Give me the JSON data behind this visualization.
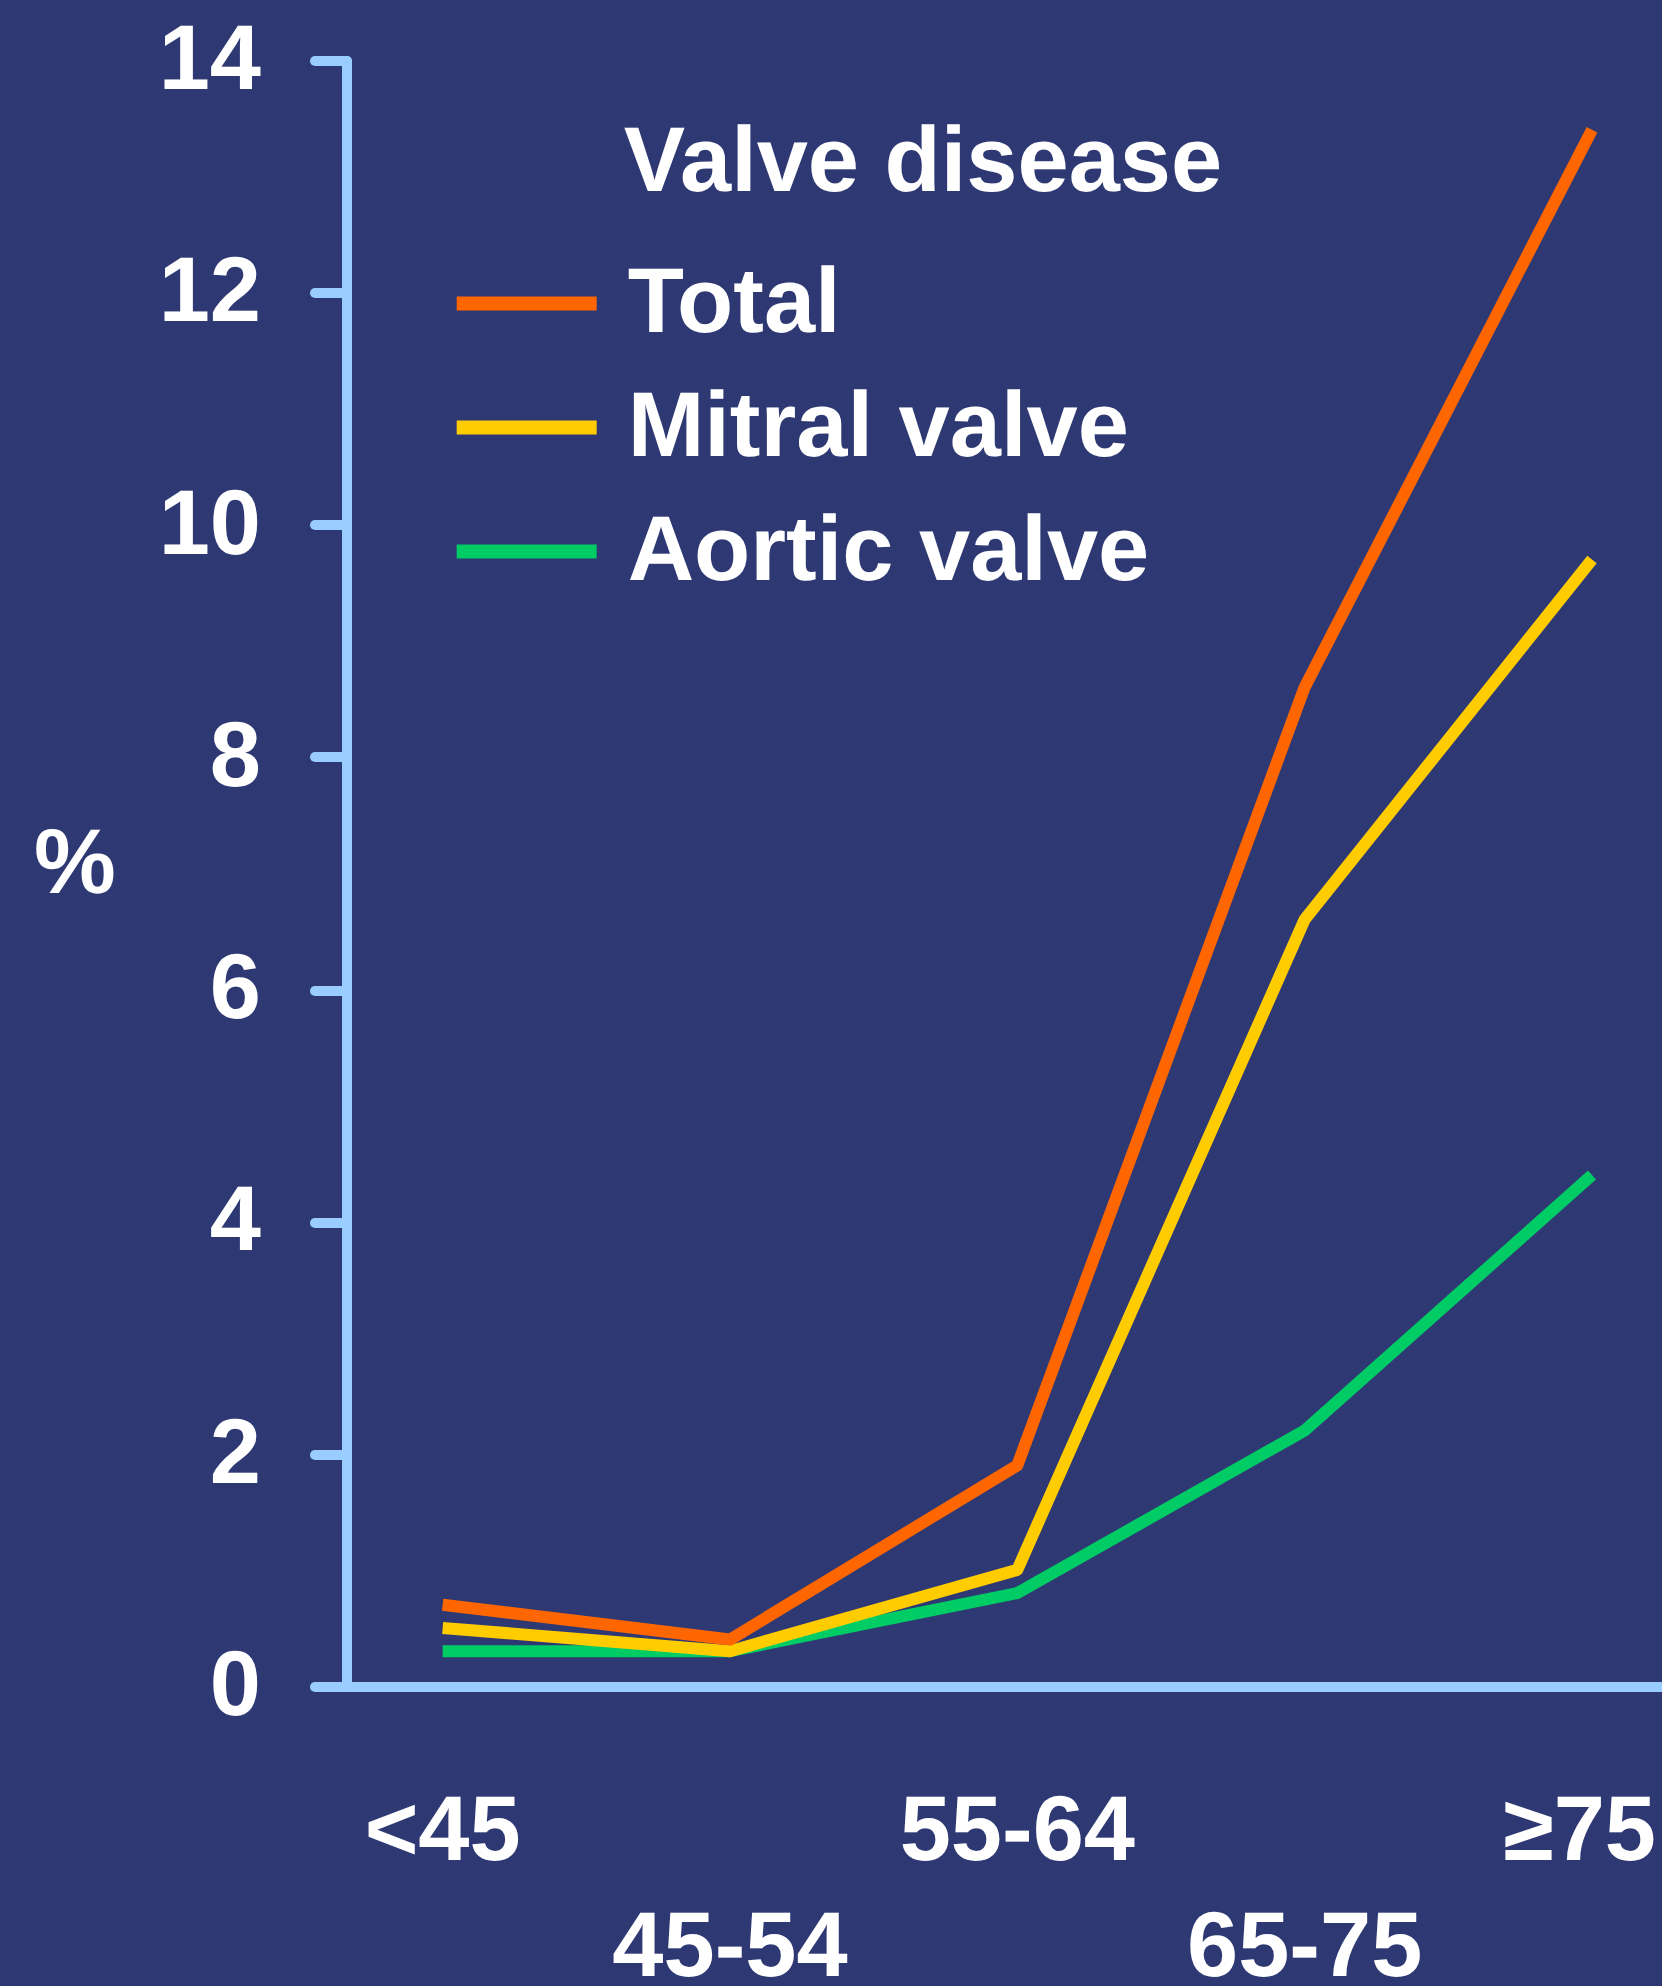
{
  "chart_data": {
    "type": "line",
    "ylabel": "%",
    "legend_title": "Valve disease",
    "categories": [
      "<45",
      "45-54",
      "55-64",
      "65-75",
      "≥75"
    ],
    "series": [
      {
        "name": "Total",
        "color": "#ff6600",
        "values": [
          0.7,
          0.4,
          1.9,
          8.6,
          13.4
        ]
      },
      {
        "name": "Mitral valve",
        "color": "#ffcc00",
        "values": [
          0.5,
          0.3,
          1.0,
          6.6,
          9.7
        ]
      },
      {
        "name": "Aortic valve",
        "color": "#00cc66",
        "values": [
          0.3,
          0.3,
          0.8,
          2.2,
          4.4
        ]
      }
    ],
    "ylim": [
      0,
      14
    ],
    "yticks": [
      0,
      2,
      4,
      6,
      8,
      10,
      12,
      14
    ],
    "legend": "top left",
    "line_style": "solid"
  }
}
